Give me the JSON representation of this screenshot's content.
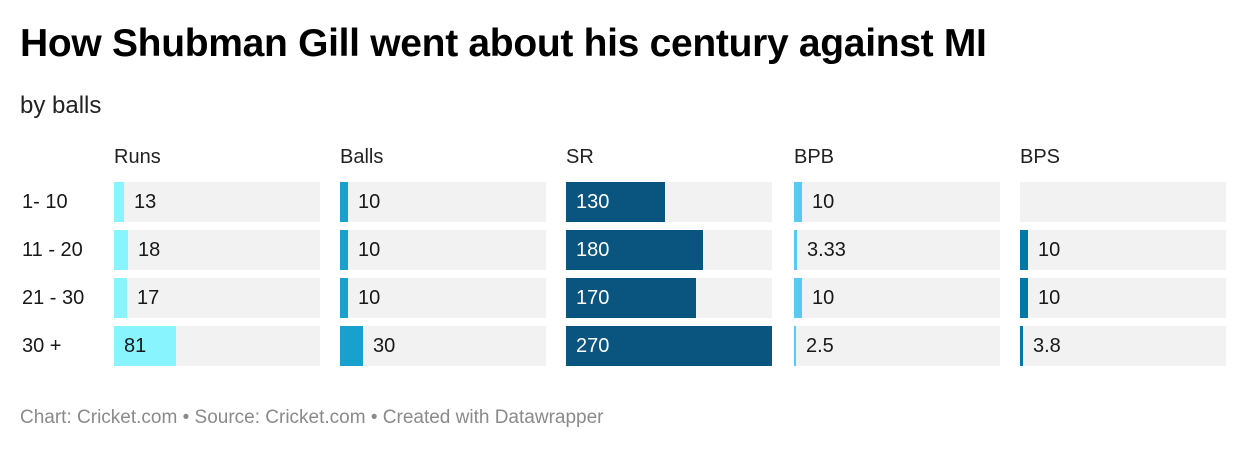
{
  "title": "How Shubman Gill went about his century against MI",
  "subtitle": "by balls",
  "footer": "Chart: Cricket.com • Source: Cricket.com • Created with Datawrapper",
  "chart_data": {
    "type": "bar",
    "subtype": "split-bars",
    "categories": [
      "1- 10",
      "11 - 20",
      "21 - 30",
      "30 +"
    ],
    "scale_max": 270,
    "series": [
      {
        "name": "Runs",
        "color": "#88f5fe",
        "values": [
          13,
          18,
          17,
          81
        ],
        "labels": [
          "13",
          "18",
          "17",
          "81"
        ]
      },
      {
        "name": "Balls",
        "color": "#18a1cd",
        "values": [
          10,
          10,
          10,
          30
        ],
        "labels": [
          "10",
          "10",
          "10",
          "30"
        ]
      },
      {
        "name": "SR",
        "color": "#09557f",
        "values": [
          130,
          180,
          170,
          270
        ],
        "labels": [
          "130",
          "180",
          "170",
          "270"
        ]
      },
      {
        "name": "BPB",
        "color": "#5ac8f7",
        "values": [
          10,
          3.33,
          10,
          2.5
        ],
        "labels": [
          "10",
          "3.33",
          "10",
          "2.5"
        ]
      },
      {
        "name": "BPS",
        "color": "#0179a4",
        "values": [
          null,
          10,
          10,
          3.8
        ],
        "labels": [
          "",
          "10",
          "10",
          "3.8"
        ]
      }
    ]
  }
}
